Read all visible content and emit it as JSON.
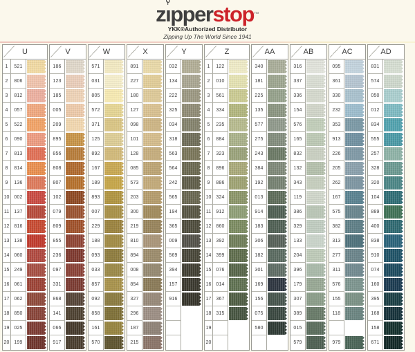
{
  "header": {
    "logo_part1": "z",
    "logo_part2": "pper",
    "logo_part3": "stop",
    "logo_tm": "™",
    "logo_dark_color": "#3f3f3f",
    "logo_red_color": "#cc2229",
    "subtitle": "YKK®Authorized Distributor",
    "tagline": "Zipping Up The World Since 1941"
  },
  "chart": {
    "row_numbers": [
      "1",
      "2",
      "3",
      "4",
      "5",
      "6",
      "7",
      "8",
      "9",
      "10",
      "11",
      "12",
      "13",
      "14",
      "15",
      "16",
      "17",
      "18",
      "19",
      "20"
    ],
    "columns": [
      {
        "label": "U",
        "numbered": true,
        "rows": [
          {
            "code": "521",
            "color": "#F0D9A2"
          },
          {
            "code": "806",
            "color": "#EFC3AC"
          },
          {
            "code": "812",
            "color": "#EBAF9F"
          },
          {
            "code": "057",
            "color": "#EFA77E"
          },
          {
            "code": "522",
            "color": "#F0A266"
          },
          {
            "code": "090",
            "color": "#EC9B80"
          },
          {
            "code": "813",
            "color": "#DF6F55"
          },
          {
            "code": "814",
            "color": "#E98E4E"
          },
          {
            "code": "136",
            "color": "#DC795B"
          },
          {
            "code": "002",
            "color": "#C94B42"
          },
          {
            "code": "137",
            "color": "#B54A3B"
          },
          {
            "code": "816",
            "color": "#C74B32"
          },
          {
            "code": "138",
            "color": "#BF3A2D"
          },
          {
            "code": "060",
            "color": "#B04A40"
          },
          {
            "code": "249",
            "color": "#A54F43"
          },
          {
            "code": "061",
            "color": "#9C4337"
          },
          {
            "code": "062",
            "color": "#8E4A3B"
          },
          {
            "code": "850",
            "color": "#88453A"
          },
          {
            "code": "025",
            "color": "#7C3B33"
          },
          {
            "code": "199",
            "color": "#6F352D"
          }
        ]
      },
      {
        "label": "V",
        "numbered": false,
        "rows": [
          {
            "code": "186",
            "color": "#DFD7C9"
          },
          {
            "code": "123",
            "color": "#E9CDB9"
          },
          {
            "code": "185",
            "color": "#EDD2B6"
          },
          {
            "code": "005",
            "color": "#ECC9A9"
          },
          {
            "code": "209",
            "color": "#F0D6AE"
          },
          {
            "code": "895",
            "color": "#C79448"
          },
          {
            "code": "856",
            "color": "#B67C3A"
          },
          {
            "code": "808",
            "color": "#B06A2E"
          },
          {
            "code": "807",
            "color": "#B4702C"
          },
          {
            "code": "102",
            "color": "#8E4A24"
          },
          {
            "code": "079",
            "color": "#9A5330"
          },
          {
            "code": "809",
            "color": "#A0522B"
          },
          {
            "code": "855",
            "color": "#8E4434"
          },
          {
            "code": "236",
            "color": "#7E3A2F"
          },
          {
            "code": "097",
            "color": "#8A4237"
          },
          {
            "code": "331",
            "color": "#7B3C33"
          },
          {
            "code": "868",
            "color": "#564538"
          },
          {
            "code": "141",
            "color": "#4E4232"
          },
          {
            "code": "066",
            "color": "#453A2C"
          },
          {
            "code": "917",
            "color": "#4A3E2F"
          }
        ]
      },
      {
        "label": "W",
        "numbered": false,
        "rows": [
          {
            "code": "571",
            "color": "#F2E9C2"
          },
          {
            "code": "031",
            "color": "#F4EDCB"
          },
          {
            "code": "805",
            "color": "#F6E9B2"
          },
          {
            "code": "572",
            "color": "#E5D594"
          },
          {
            "code": "371",
            "color": "#D9C585"
          },
          {
            "code": "125",
            "color": "#DDCD96"
          },
          {
            "code": "892",
            "color": "#D1B97A"
          },
          {
            "code": "167",
            "color": "#C9A953"
          },
          {
            "code": "189",
            "color": "#C5A549"
          },
          {
            "code": "893",
            "color": "#B19542"
          },
          {
            "code": "007",
            "color": "#A89048"
          },
          {
            "code": "229",
            "color": "#9C8440"
          },
          {
            "code": "188",
            "color": "#A18B45"
          },
          {
            "code": "093",
            "color": "#8F7D3F"
          },
          {
            "code": "033",
            "color": "#9B8948"
          },
          {
            "code": "857",
            "color": "#A9934D"
          },
          {
            "code": "092",
            "color": "#8B7B41"
          },
          {
            "code": "858",
            "color": "#7F7139"
          },
          {
            "code": "161",
            "color": "#968440"
          },
          {
            "code": "570",
            "color": "#5F5530"
          }
        ]
      },
      {
        "label": "X",
        "numbered": false,
        "rows": [
          {
            "code": "891",
            "color": "#E9D9A9"
          },
          {
            "code": "227",
            "color": "#E1CD99"
          },
          {
            "code": "180",
            "color": "#DDC999"
          },
          {
            "code": "127",
            "color": "#D9C191"
          },
          {
            "code": "098",
            "color": "#CDB585"
          },
          {
            "code": "101",
            "color": "#D5BD8D"
          },
          {
            "code": "128",
            "color": "#C5AD7D"
          },
          {
            "code": "085",
            "color": "#BDA575"
          },
          {
            "code": "573",
            "color": "#C1A979"
          },
          {
            "code": "203",
            "color": "#B59D6D"
          },
          {
            "code": "300",
            "color": "#A18B5D"
          },
          {
            "code": "219",
            "color": "#99855D"
          },
          {
            "code": "810",
            "color": "#A99579"
          },
          {
            "code": "894",
            "color": "#9D8D6D"
          },
          {
            "code": "008",
            "color": "#958971"
          },
          {
            "code": "854",
            "color": "#8B7B59"
          },
          {
            "code": "327",
            "color": "#978979"
          },
          {
            "code": "296",
            "color": "#9D8F85"
          },
          {
            "code": "187",
            "color": "#8F8377"
          },
          {
            "code": "215",
            "color": "#8B7569"
          }
        ]
      },
      {
        "label": "Y",
        "numbered": false,
        "rows": [
          {
            "code": "032",
            "color": "#B1AD95"
          },
          {
            "code": "134",
            "color": "#A9A591"
          },
          {
            "code": "222",
            "color": "#9B9781"
          },
          {
            "code": "325",
            "color": "#8F8B75"
          },
          {
            "code": "034",
            "color": "#83816B"
          },
          {
            "code": "318",
            "color": "#6F6D59"
          },
          {
            "code": "563",
            "color": "#797559"
          },
          {
            "code": "564",
            "color": "#6B6951"
          },
          {
            "code": "242",
            "color": "#5F5D49"
          },
          {
            "code": "565",
            "color": "#696751"
          },
          {
            "code": "194",
            "color": "#575543"
          },
          {
            "code": "365",
            "color": "#4F4D3D"
          },
          {
            "code": "009",
            "color": "#535149"
          },
          {
            "code": "569",
            "color": "#494739"
          },
          {
            "code": "394",
            "color": "#413F33"
          },
          {
            "code": "157",
            "color": "#3B392F"
          },
          {
            "code": "916",
            "color": "#37352B"
          },
          {
            "code": "",
            "color": null
          },
          {
            "code": "",
            "color": null
          },
          {
            "code": "",
            "color": null
          }
        ]
      },
      {
        "label": "Z",
        "numbered": true,
        "rows": [
          {
            "code": "122",
            "color": "#EEEAC6"
          },
          {
            "code": "010",
            "color": "#E3E1B1"
          },
          {
            "code": "561",
            "color": "#C9C991"
          },
          {
            "code": "334",
            "color": "#B1B57D"
          },
          {
            "code": "235",
            "color": "#B5B98D"
          },
          {
            "code": "884",
            "color": "#A9B189"
          },
          {
            "code": "323",
            "color": "#99A179"
          },
          {
            "code": "896",
            "color": "#A9A979"
          },
          {
            "code": "886",
            "color": "#9DA171"
          },
          {
            "code": "324",
            "color": "#8B9569"
          },
          {
            "code": "912",
            "color": "#8D9D75"
          },
          {
            "code": "860",
            "color": "#7B8B61"
          },
          {
            "code": "392",
            "color": "#6F7D59"
          },
          {
            "code": "399",
            "color": "#5F6D4D"
          },
          {
            "code": "076",
            "color": "#576549"
          },
          {
            "code": "014",
            "color": "#5F7151"
          },
          {
            "code": "367",
            "color": "#4F5D43"
          },
          {
            "code": "315",
            "color": "#475541"
          },
          {
            "code": "",
            "color": null
          },
          {
            "code": "",
            "color": null
          }
        ]
      },
      {
        "label": "AA",
        "numbered": false,
        "rows": [
          {
            "code": "340",
            "color": "#A9AD99"
          },
          {
            "code": "181",
            "color": "#9DA58F"
          },
          {
            "code": "225",
            "color": "#95A18B"
          },
          {
            "code": "135",
            "color": "#8B9581"
          },
          {
            "code": "577",
            "color": "#8F998B"
          },
          {
            "code": "275",
            "color": "#838D7D"
          },
          {
            "code": "243",
            "color": "#6B7965"
          },
          {
            "code": "384",
            "color": "#7F8979"
          },
          {
            "code": "192",
            "color": "#758171"
          },
          {
            "code": "013",
            "color": "#5F6D5B"
          },
          {
            "code": "914",
            "color": "#4F5F53"
          },
          {
            "code": "183",
            "color": "#516155"
          },
          {
            "code": "306",
            "color": "#576159"
          },
          {
            "code": "182",
            "color": "#5B6B61"
          },
          {
            "code": "301",
            "color": "#5F6D65"
          },
          {
            "code": "169",
            "color": "#2F3741"
          },
          {
            "code": "156",
            "color": "#47554D"
          },
          {
            "code": "075",
            "color": "#3B4941"
          },
          {
            "code": "580",
            "color": "#2F3B35"
          },
          {
            "code": "",
            "color": null
          }
        ]
      },
      {
        "label": "AB",
        "numbered": false,
        "rows": [
          {
            "code": "316",
            "color": "#E1E3DB"
          },
          {
            "code": "337",
            "color": "#D9DDD3"
          },
          {
            "code": "336",
            "color": "#D5D9CD"
          },
          {
            "code": "154",
            "color": "#D1D5C9"
          },
          {
            "code": "576",
            "color": "#C1CDB9"
          },
          {
            "code": "165",
            "color": "#BDC9B5"
          },
          {
            "code": "832",
            "color": "#C9CFC1"
          },
          {
            "code": "132",
            "color": "#B5C1AD"
          },
          {
            "code": "343",
            "color": "#C5CDBD"
          },
          {
            "code": "119",
            "color": "#D1D7CB"
          },
          {
            "code": "386",
            "color": "#B9C5B5"
          },
          {
            "code": "329",
            "color": "#C1CDC1"
          },
          {
            "code": "133",
            "color": "#C9D3C9"
          },
          {
            "code": "204",
            "color": "#BFCBB9"
          },
          {
            "code": "396",
            "color": "#A9B9A9"
          },
          {
            "code": "179",
            "color": "#99A995"
          },
          {
            "code": "307",
            "color": "#8B9D89"
          },
          {
            "code": "389",
            "color": "#697B69"
          },
          {
            "code": "015",
            "color": "#5B6D5D"
          },
          {
            "code": "579",
            "color": "#4F6153"
          }
        ]
      },
      {
        "label": "AC",
        "numbered": false,
        "rows": [
          {
            "code": "095",
            "color": "#C3D3DD"
          },
          {
            "code": "361",
            "color": "#B5C5D1"
          },
          {
            "code": "330",
            "color": "#A9C1CD"
          },
          {
            "code": "232",
            "color": "#9DBDCD"
          },
          {
            "code": "353",
            "color": "#7B99A5"
          },
          {
            "code": "913",
            "color": "#7191A1"
          },
          {
            "code": "226",
            "color": "#7F99A5"
          },
          {
            "code": "205",
            "color": "#8BA1AD"
          },
          {
            "code": "262",
            "color": "#7D95A1"
          },
          {
            "code": "167",
            "color": "#5B8391"
          },
          {
            "code": "575",
            "color": "#69858D"
          },
          {
            "code": "382",
            "color": "#5F7F87"
          },
          {
            "code": "313",
            "color": "#4F717B"
          },
          {
            "code": "277",
            "color": "#6B858B"
          },
          {
            "code": "311",
            "color": "#71898F"
          },
          {
            "code": "576",
            "color": "#7D958F"
          },
          {
            "code": "155",
            "color": "#7B9185"
          },
          {
            "code": "118",
            "color": "#6B8581"
          },
          {
            "code": "",
            "color": null
          },
          {
            "code": "979",
            "color": "#4B6557"
          }
        ]
      },
      {
        "label": "AD",
        "numbered": false,
        "rows": [
          {
            "code": "831",
            "color": "#D5DDD1"
          },
          {
            "code": "574",
            "color": "#CDD7CB"
          },
          {
            "code": "050",
            "color": "#A9CDCD"
          },
          {
            "code": "012",
            "color": "#7DB9C1"
          },
          {
            "code": "834",
            "color": "#50A1AD"
          },
          {
            "code": "555",
            "color": "#4B99A5"
          },
          {
            "code": "257",
            "color": "#8DB1A5"
          },
          {
            "code": "328",
            "color": "#6B9991"
          },
          {
            "code": "320",
            "color": "#4B8585"
          },
          {
            "code": "104",
            "color": "#2F6D75"
          },
          {
            "code": "889",
            "color": "#3F7155"
          },
          {
            "code": "400",
            "color": "#2F6971"
          },
          {
            "code": "838",
            "color": "#2B6379"
          },
          {
            "code": "910",
            "color": "#1F5367"
          },
          {
            "code": "074",
            "color": "#1D4B5F"
          },
          {
            "code": "160",
            "color": "#1B3B51"
          },
          {
            "code": "395",
            "color": "#1B3F45"
          },
          {
            "code": "168",
            "color": "#17333B"
          },
          {
            "code": "158",
            "color": "#15312D"
          },
          {
            "code": "671",
            "color": "#132927"
          }
        ]
      }
    ]
  }
}
